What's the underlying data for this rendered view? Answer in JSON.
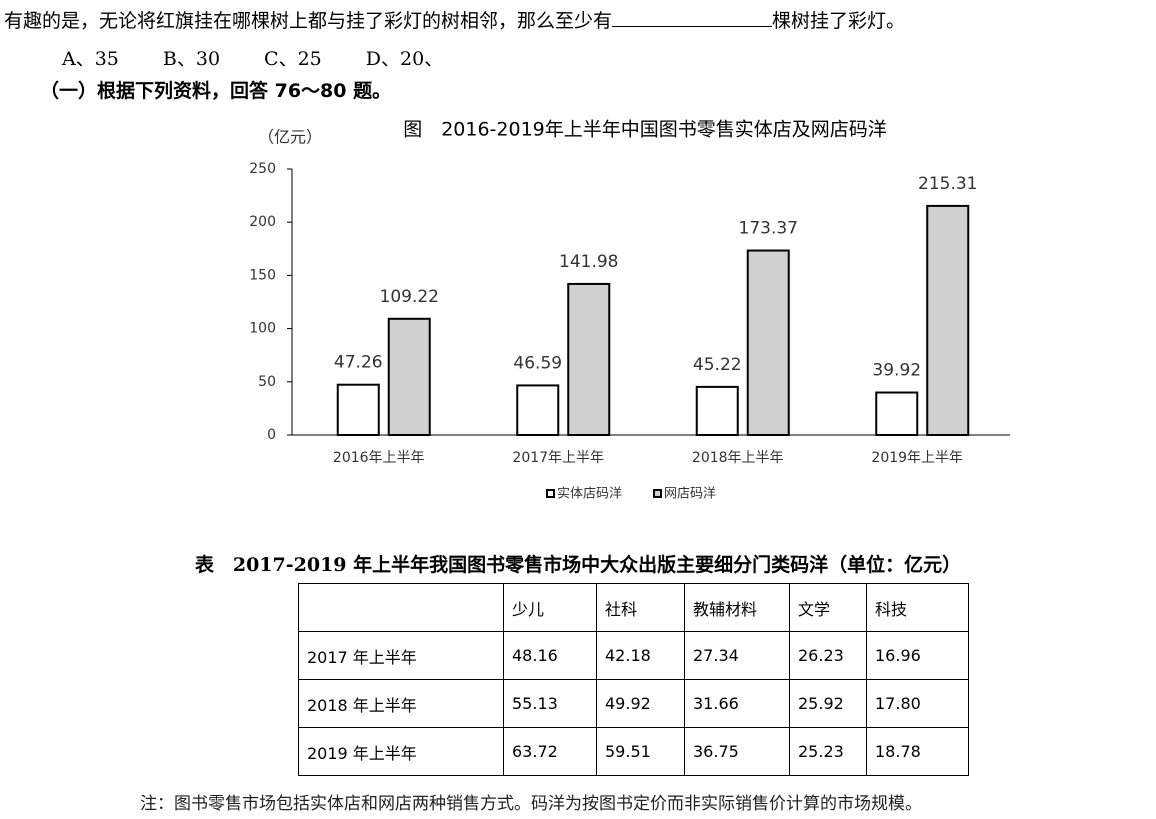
{
  "question": {
    "text_before": "有趣的是，无论将红旗挂在哪棵树上都与挂了彩灯的树相邻，那么至少有",
    "text_after": "棵树挂了彩灯。",
    "options": [
      "A、35",
      "B、30",
      "C、25",
      "D、20、"
    ]
  },
  "section": "（一）根据下列资料，回答 76～80 题。",
  "chart_data": {
    "type": "bar",
    "title": "图　2016-2019年上半年中国图书零售实体店及网店码洋",
    "y_label": "（亿元）",
    "categories": [
      "2016年上半年",
      "2017年上半年",
      "2018年上半年",
      "2019年上半年"
    ],
    "series": [
      {
        "name": "实体店码洋",
        "color": "#ffffff",
        "values": [
          47.26,
          46.59,
          45.22,
          39.92
        ]
      },
      {
        "name": "网店码洋",
        "color": "#d0d0d0",
        "values": [
          109.22,
          141.98,
          173.37,
          215.31
        ]
      }
    ],
    "ylim": [
      0,
      250
    ],
    "yticks": [
      0,
      50,
      100,
      150,
      200,
      250
    ],
    "legend": "bottom"
  },
  "table": {
    "title": "表　2017-2019 年上半年我国图书零售市场中大众出版主要细分门类码洋（单位：亿元）",
    "columns": [
      "少儿",
      "社科",
      "教辅材料",
      "文学",
      "科技"
    ],
    "rows": [
      {
        "label": "2017 年上半年",
        "values": [
          "48.16",
          "42.18",
          "27.34",
          "26.23",
          "16.96"
        ]
      },
      {
        "label": "2018 年上半年",
        "values": [
          "55.13",
          "49.92",
          "31.66",
          "25.92",
          "17.80"
        ]
      },
      {
        "label": "2019 年上半年",
        "values": [
          "63.72",
          "59.51",
          "36.75",
          "25.23",
          "18.78"
        ]
      }
    ]
  },
  "note": "注：图书零售市场包括实体店和网店两种销售方式。码洋为按图书定价而非实际销售价计算的市场规模。"
}
